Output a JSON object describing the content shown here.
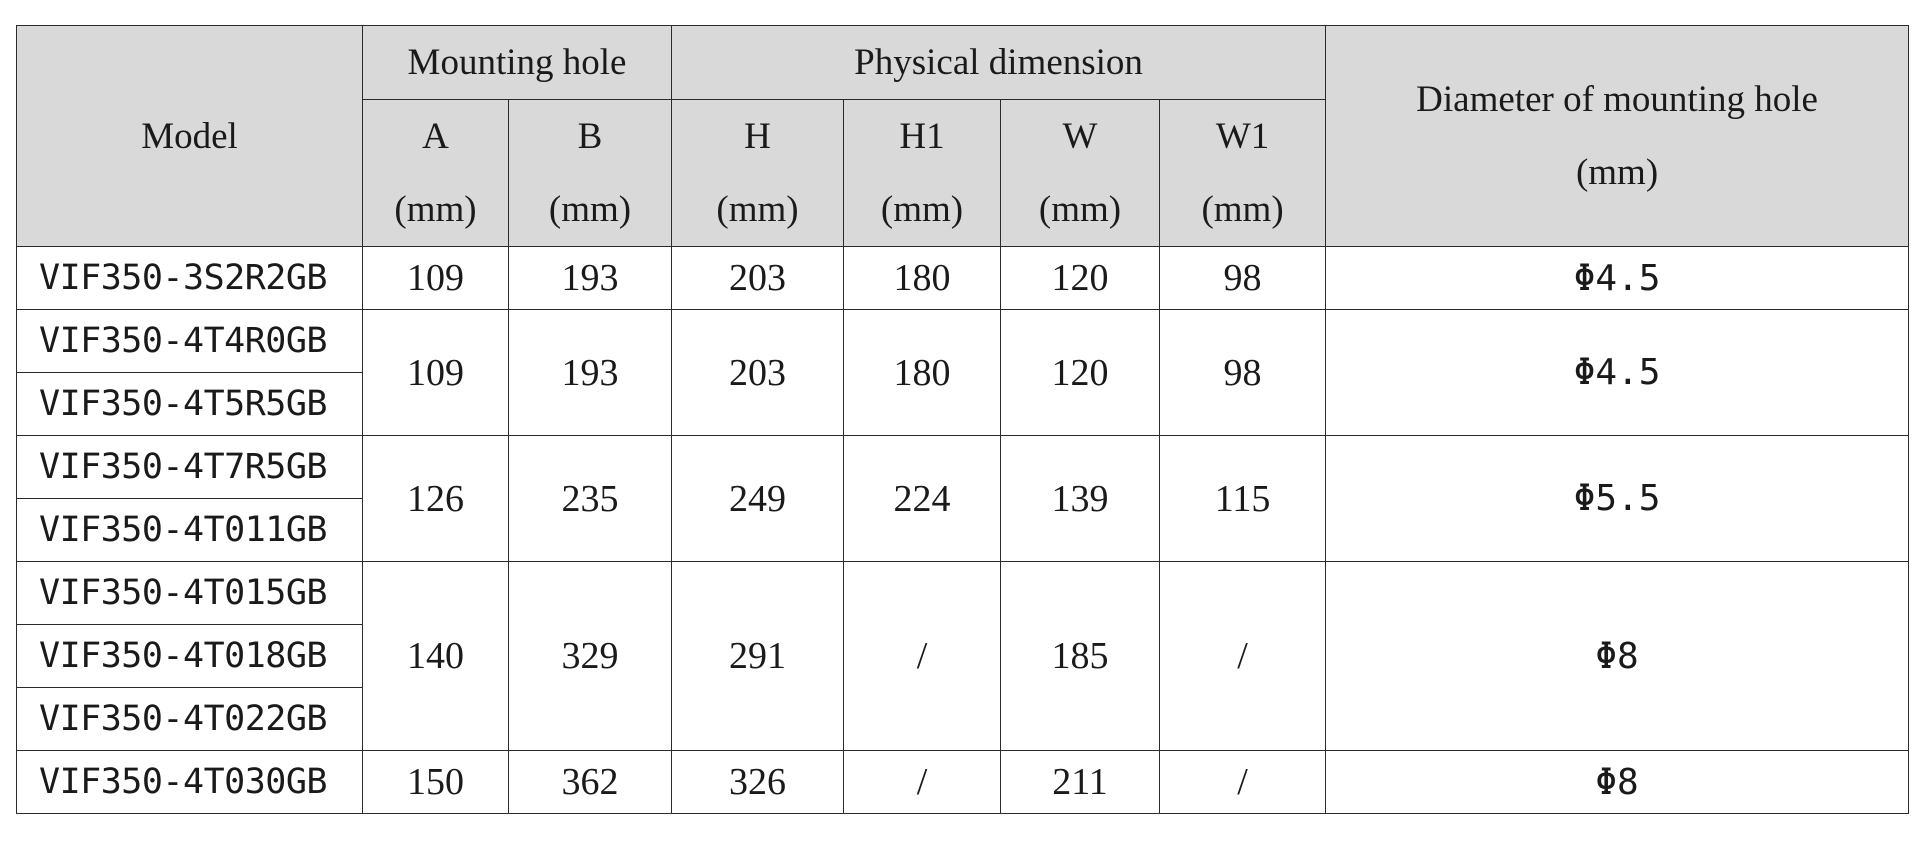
{
  "headers": {
    "model": "Model",
    "mounting_hole": "Mounting hole",
    "physical_dimension": "Physical dimension",
    "diameter_line1": "Diameter of mounting hole",
    "diameter_line2": "(mm)",
    "columns": [
      {
        "label": "A",
        "unit": "(mm)"
      },
      {
        "label": "B",
        "unit": "(mm)"
      },
      {
        "label": "H",
        "unit": "(mm)"
      },
      {
        "label": "H1",
        "unit": "(mm)"
      },
      {
        "label": "W",
        "unit": "(mm)"
      },
      {
        "label": "W1",
        "unit": "(mm)"
      }
    ]
  },
  "groups": [
    {
      "models": [
        "VIF350-3S2R2GB"
      ],
      "A": "109",
      "B": "193",
      "H": "203",
      "H1": "180",
      "W": "120",
      "W1": "98",
      "diameter": "Φ4.5"
    },
    {
      "models": [
        "VIF350-4T4R0GB",
        "VIF350-4T5R5GB"
      ],
      "A": "109",
      "B": "193",
      "H": "203",
      "H1": "180",
      "W": "120",
      "W1": "98",
      "diameter": "Φ4.5"
    },
    {
      "models": [
        "VIF350-4T7R5GB",
        "VIF350-4T011GB"
      ],
      "A": "126",
      "B": "235",
      "H": "249",
      "H1": "224",
      "W": "139",
      "W1": "115",
      "diameter": "Φ5.5"
    },
    {
      "models": [
        "VIF350-4T015GB",
        "VIF350-4T018GB",
        "VIF350-4T022GB"
      ],
      "A": "140",
      "B": "329",
      "H": "291",
      "H1": "/",
      "W": "185",
      "W1": "/",
      "diameter": "Φ8"
    },
    {
      "models": [
        "VIF350-4T030GB"
      ],
      "A": "150",
      "B": "362",
      "H": "326",
      "H1": "/",
      "W": "211",
      "W1": "/",
      "diameter": "Φ8"
    }
  ]
}
